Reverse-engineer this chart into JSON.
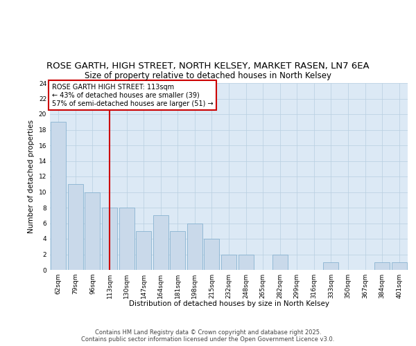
{
  "title_line1": "ROSE GARTH, HIGH STREET, NORTH KELSEY, MARKET RASEN, LN7 6EA",
  "title_line2": "Size of property relative to detached houses in North Kelsey",
  "xlabel": "Distribution of detached houses by size in North Kelsey",
  "ylabel": "Number of detached properties",
  "categories": [
    "62sqm",
    "79sqm",
    "96sqm",
    "113sqm",
    "130sqm",
    "147sqm",
    "164sqm",
    "181sqm",
    "198sqm",
    "215sqm",
    "232sqm",
    "248sqm",
    "265sqm",
    "282sqm",
    "299sqm",
    "316sqm",
    "333sqm",
    "350sqm",
    "367sqm",
    "384sqm",
    "401sqm"
  ],
  "values": [
    19,
    11,
    10,
    8,
    8,
    5,
    7,
    5,
    6,
    4,
    2,
    2,
    0,
    2,
    0,
    0,
    1,
    0,
    0,
    1,
    1
  ],
  "bar_color": "#c9d9ea",
  "bar_edge_color": "#7aaaca",
  "red_line_index": 3,
  "annotation_line1": "ROSE GARTH HIGH STREET: 113sqm",
  "annotation_line2": "← 43% of detached houses are smaller (39)",
  "annotation_line3": "57% of semi-detached houses are larger (51) →",
  "annotation_box_color": "#ffffff",
  "annotation_box_edge_color": "#cc0000",
  "ylim": [
    0,
    24
  ],
  "yticks": [
    0,
    2,
    4,
    6,
    8,
    10,
    12,
    14,
    16,
    18,
    20,
    22,
    24
  ],
  "fig_background_color": "#ffffff",
  "plot_background_color": "#dce9f5",
  "footer_line1": "Contains HM Land Registry data © Crown copyright and database right 2025.",
  "footer_line2": "Contains public sector information licensed under the Open Government Licence v3.0.",
  "title_fontsize": 9.5,
  "subtitle_fontsize": 8.5,
  "axis_label_fontsize": 7.5,
  "tick_fontsize": 6.5,
  "annotation_fontsize": 7,
  "footer_fontsize": 6,
  "red_line_color": "#cc0000",
  "grid_color": "#b8cfe0"
}
